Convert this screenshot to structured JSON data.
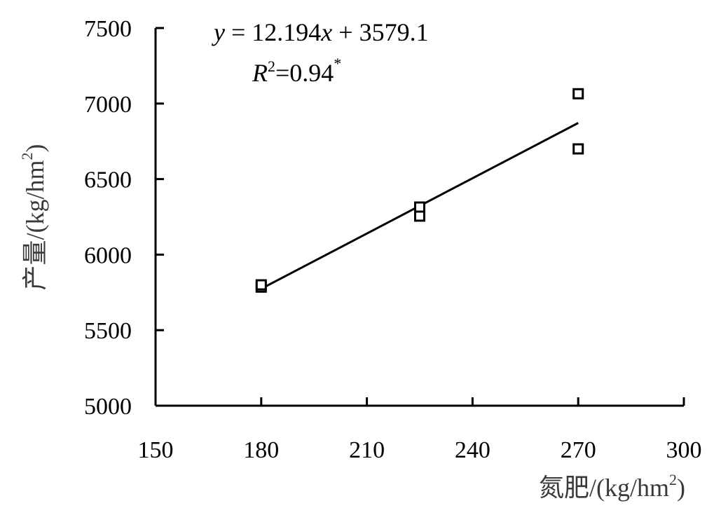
{
  "chart_data": {
    "type": "scatter",
    "xlabel": "氮肥/(kg/hm",
    "xlabel_sup": "2",
    "xlabel_end": ")",
    "ylabel": "产量/(kg/hm",
    "ylabel_sup": "2",
    "ylabel_end": ")",
    "xlim": [
      150,
      300
    ],
    "ylim": [
      5000,
      7500
    ],
    "xticks": [
      "150",
      "180",
      "210",
      "240",
      "270",
      "300"
    ],
    "yticks": [
      "5000",
      "5500",
      "6000",
      "6500",
      "7000",
      "7500"
    ],
    "grid": false,
    "series": [
      {
        "points": [
          {
            "x": 180,
            "y": 5785
          },
          {
            "x": 180,
            "y": 5800
          },
          {
            "x": 225,
            "y": 6255
          },
          {
            "x": 225,
            "y": 6315
          },
          {
            "x": 270,
            "y": 6700
          },
          {
            "x": 270,
            "y": 7065
          }
        ]
      }
    ],
    "trendline": {
      "slope": 12.194,
      "intercept": 3579.1,
      "x_range": [
        180,
        270
      ]
    },
    "annotations": {
      "equation_y": "y",
      "equation_rest": " = 12.194",
      "equation_x": "x",
      "equation_tail": " + 3579.1",
      "r_letter": "R",
      "r_sup": "2",
      "r_value": "=0.94",
      "r_star": "*"
    }
  }
}
